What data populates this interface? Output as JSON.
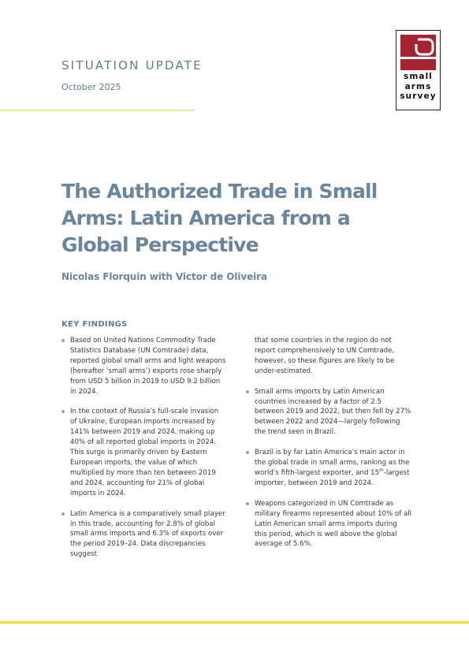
{
  "header": {
    "series": "SITUATION UPDATE",
    "date": "October 2025"
  },
  "logo": {
    "line1": "small",
    "line2": "arms",
    "line3": "survey",
    "colors": {
      "mark": "#a5222f",
      "frame": "#222222"
    }
  },
  "title": {
    "line1": "The Authorized Trade in Small",
    "line2": "Arms: Latin America from a",
    "line3": "Global Perspective"
  },
  "authors": "Nicolas Florquin with  Victor de Oliveira",
  "key_findings": {
    "heading": "KEY FINDINGS",
    "items": [
      "Based on United Nations Commodity Trade Statistics Database (UN Comtrade) data, reported global small arms and light weapons (hereafter ‘small arms’) exports rose sharply from USD 5 billion in 2019 to USD 9.2 billion in 2024.",
      "In the context of Russia’s full-scale invasion of Ukraine, European imports increased by 141% between 2019 and 2024, making up 40% of all reported global imports in 2024. This surge is primarily driven by Eastern European imports, the value of which multiplied by more than ten between 2019 and 2024, accounting for 21% of global imports in 2024.",
      "Latin America is a comparatively small player in this trade, accounting for 2.8% of global small arms imports and 6.3% of exports over the period 2019–24. Data discrepancies suggest",
      "that some countries in the region do not report comprehensively to UN Comtrade, however, so these figures are likely to be under-estimated.",
      "Small arms imports by Latin American countries increased by a factor of 2.5 between 2019 and 2022, but then fell by 27% between 2022 and 2024—largely following the trend seen in Brazil.",
      "Weapons categorized in UN Comtrade as military firearms represented about 10% of all Latin American small arms imports during this period, which is well above the global average of 5.6%."
    ],
    "brazil": {
      "part1": "Brazil is by far Latin America’s main actor in the global trade in small arms, ranking as the world’s fifth-largest exporter, and 15",
      "sup": "th",
      "part2": "-largest importer, between 2019 and 2024."
    }
  },
  "colors": {
    "accent_blue": "#6a85a0",
    "top_rule": "#f3e7a0",
    "bottom_rule": "#f5dc3c"
  }
}
